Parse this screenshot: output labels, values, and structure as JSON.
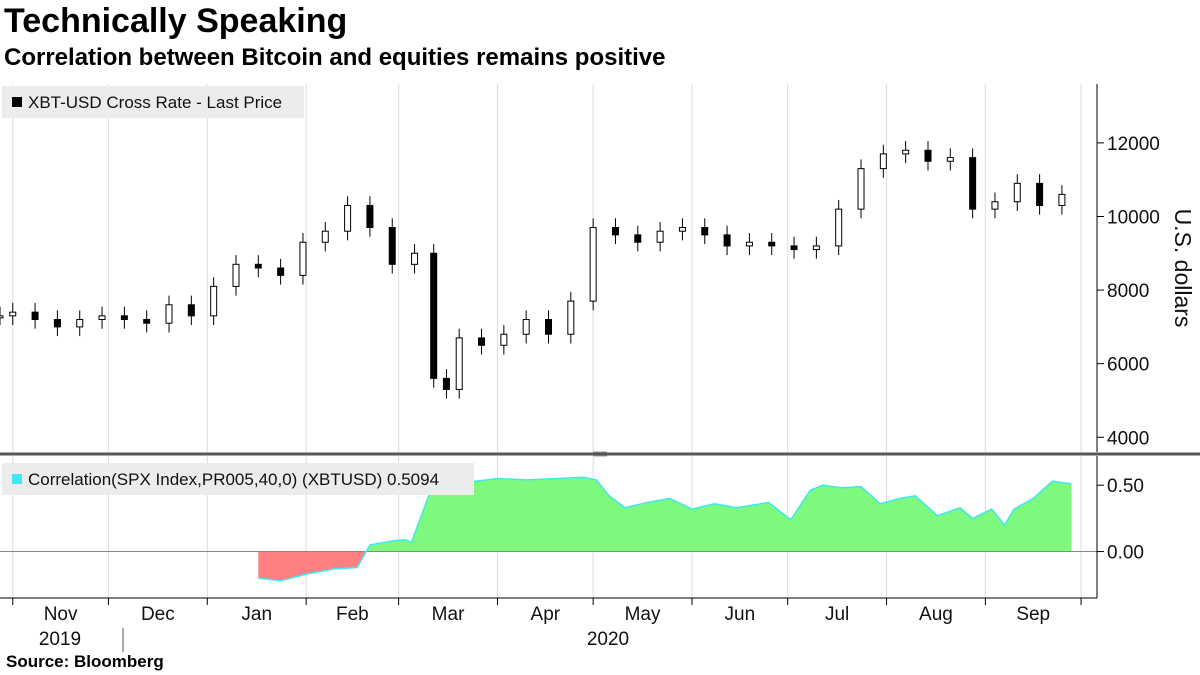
{
  "header": {
    "title": "Technically Speaking",
    "subtitle": "Correlation between Bitcoin and equities remains positive"
  },
  "footer": {
    "source": "Source: Bloomberg"
  },
  "colors": {
    "candle": "#000000",
    "positive_fill": "#7dfa7d",
    "negative_fill": "#ff8080",
    "correlation_line": "#3fe8f0",
    "grid": "#dddddd",
    "axis": "#000000"
  },
  "chart_data": [
    {
      "type": "candlestick",
      "legend": "XBT-USD Cross Rate - Last Price",
      "ylabel": "U.S. dollars",
      "ylim": [
        3600,
        13600
      ],
      "yticks": [
        4000,
        6000,
        8000,
        10000,
        12000
      ],
      "ytick_labels": [
        "4000",
        "6000",
        "8000",
        "10000",
        "12000"
      ],
      "grid": "vertical at month boundaries",
      "x": [
        "2019-10-28",
        "2019-11-01",
        "2019-11-08",
        "2019-11-15",
        "2019-11-22",
        "2019-11-29",
        "2019-12-06",
        "2019-12-13",
        "2019-12-20",
        "2019-12-27",
        "2020-01-03",
        "2020-01-10",
        "2020-01-17",
        "2020-01-24",
        "2020-01-31",
        "2020-02-07",
        "2020-02-14",
        "2020-02-21",
        "2020-02-28",
        "2020-03-06",
        "2020-03-12",
        "2020-03-16",
        "2020-03-20",
        "2020-03-27",
        "2020-04-03",
        "2020-04-10",
        "2020-04-17",
        "2020-04-24",
        "2020-05-01",
        "2020-05-08",
        "2020-05-15",
        "2020-05-22",
        "2020-05-29",
        "2020-06-05",
        "2020-06-12",
        "2020-06-19",
        "2020-06-26",
        "2020-07-03",
        "2020-07-10",
        "2020-07-17",
        "2020-07-24",
        "2020-07-31",
        "2020-08-07",
        "2020-08-14",
        "2020-08-21",
        "2020-08-28",
        "2020-09-04",
        "2020-09-11",
        "2020-09-18",
        "2020-09-25"
      ],
      "close": [
        7300,
        7400,
        7200,
        7000,
        7200,
        7300,
        7200,
        7100,
        7600,
        7300,
        8100,
        8700,
        8600,
        8400,
        9300,
        9600,
        10300,
        9700,
        8700,
        9000,
        5600,
        5300,
        6700,
        6500,
        6800,
        7200,
        6800,
        7700,
        9700,
        9500,
        9300,
        9600,
        9700,
        9500,
        9200,
        9300,
        9200,
        9100,
        9200,
        10200,
        11300,
        11700,
        11800,
        11500,
        11600,
        10200,
        10400,
        10900,
        10300,
        10600
      ]
    },
    {
      "type": "area",
      "legend": "Correlation(SPX Index,PR005,40,0) (XBTUSD) 0.5094",
      "ylim": [
        -0.35,
        0.72
      ],
      "yticks": [
        0.0,
        0.5
      ],
      "ytick_labels": [
        "0.00",
        "0.50"
      ],
      "x": [
        "2020-01-17",
        "2020-01-24",
        "2020-02-01",
        "2020-02-10",
        "2020-02-17",
        "2020-02-21",
        "2020-02-28",
        "2020-03-03",
        "2020-03-05",
        "2020-03-12",
        "2020-03-18",
        "2020-03-25",
        "2020-04-01",
        "2020-04-10",
        "2020-04-20",
        "2020-04-28",
        "2020-05-02",
        "2020-05-06",
        "2020-05-11",
        "2020-05-18",
        "2020-05-25",
        "2020-06-01",
        "2020-06-08",
        "2020-06-15",
        "2020-06-25",
        "2020-07-02",
        "2020-07-08",
        "2020-07-12",
        "2020-07-18",
        "2020-07-24",
        "2020-07-30",
        "2020-08-05",
        "2020-08-10",
        "2020-08-17",
        "2020-08-24",
        "2020-08-28",
        "2020-09-03",
        "2020-09-07",
        "2020-09-10",
        "2020-09-16",
        "2020-09-22",
        "2020-09-28"
      ],
      "values": [
        -0.2,
        -0.22,
        -0.17,
        -0.13,
        -0.12,
        0.05,
        0.08,
        0.09,
        0.07,
        0.52,
        0.54,
        0.53,
        0.55,
        0.54,
        0.55,
        0.56,
        0.54,
        0.42,
        0.33,
        0.37,
        0.4,
        0.32,
        0.36,
        0.33,
        0.37,
        0.24,
        0.46,
        0.5,
        0.48,
        0.49,
        0.36,
        0.4,
        0.42,
        0.27,
        0.33,
        0.25,
        0.32,
        0.2,
        0.32,
        0.4,
        0.53,
        0.51
      ]
    }
  ],
  "x_axis": {
    "month_labels": [
      "Nov",
      "Dec",
      "Jan",
      "Feb",
      "Mar",
      "Apr",
      "May",
      "Jun",
      "Jul",
      "Aug",
      "Sep"
    ],
    "year_labels": [
      "2019",
      "2020"
    ]
  }
}
